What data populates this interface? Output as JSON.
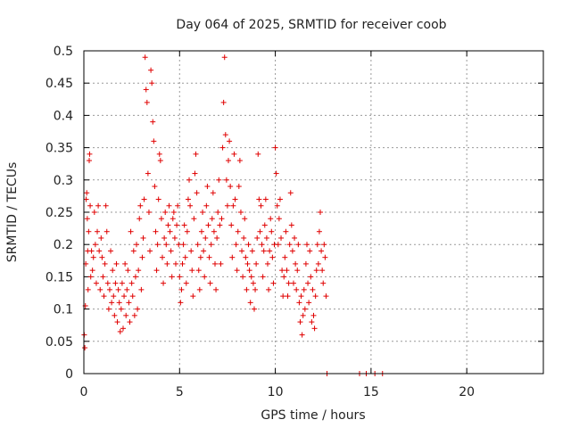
{
  "chart_data": {
    "type": "scatter",
    "title": "Day 064 of 2025, SRMTID for receiver coob",
    "xlabel": "GPS time / hours",
    "ylabel": "SRMTID / TECUs",
    "xlim": [
      0,
      24
    ],
    "ylim": [
      0,
      0.5
    ],
    "x_ticks": [
      0,
      5,
      10,
      15,
      20
    ],
    "x_tick_labels": [
      "0",
      "5",
      "10",
      "15",
      "20"
    ],
    "y_ticks": [
      0,
      0.05,
      0.1,
      0.15,
      0.2,
      0.25,
      0.3,
      0.35,
      0.4,
      0.45,
      0.5
    ],
    "y_tick_labels": [
      "0",
      "0.05",
      "0.1",
      "0.15",
      "0.2",
      "0.25",
      "0.3",
      "0.35",
      "0.4",
      "0.45",
      "0.5"
    ],
    "grid": true,
    "marker": "+",
    "color": "#e00000",
    "series": [
      {
        "name": "SRMTID",
        "points": [
          [
            0.02,
            0.06
          ],
          [
            0.05,
            0.04
          ],
          [
            0.08,
            0.105
          ],
          [
            0.1,
            0.17
          ],
          [
            0.12,
            0.27
          ],
          [
            0.15,
            0.28
          ],
          [
            0.18,
            0.24
          ],
          [
            0.2,
            0.19
          ],
          [
            0.22,
            0.13
          ],
          [
            0.25,
            0.22
          ],
          [
            0.28,
            0.33
          ],
          [
            0.3,
            0.34
          ],
          [
            0.33,
            0.26
          ],
          [
            0.36,
            0.15
          ],
          [
            0.4,
            0.19
          ],
          [
            0.45,
            0.16
          ],
          [
            0.5,
            0.18
          ],
          [
            0.55,
            0.25
          ],
          [
            0.6,
            0.2
          ],
          [
            0.65,
            0.14
          ],
          [
            0.7,
            0.22
          ],
          [
            0.75,
            0.26
          ],
          [
            0.8,
            0.19
          ],
          [
            0.85,
            0.13
          ],
          [
            0.9,
            0.21
          ],
          [
            0.95,
            0.18
          ],
          [
            1.0,
            0.15
          ],
          [
            1.05,
            0.12
          ],
          [
            1.1,
            0.17
          ],
          [
            1.15,
            0.26
          ],
          [
            1.2,
            0.22
          ],
          [
            1.25,
            0.14
          ],
          [
            1.3,
            0.1
          ],
          [
            1.35,
            0.13
          ],
          [
            1.4,
            0.19
          ],
          [
            1.45,
            0.11
          ],
          [
            1.5,
            0.16
          ],
          [
            1.55,
            0.12
          ],
          [
            1.6,
            0.09
          ],
          [
            1.65,
            0.14
          ],
          [
            1.7,
            0.17
          ],
          [
            1.75,
            0.08
          ],
          [
            1.8,
            0.13
          ],
          [
            1.85,
            0.11
          ],
          [
            1.9,
            0.065
          ],
          [
            1.95,
            0.1
          ],
          [
            2.0,
            0.14
          ],
          [
            2.05,
            0.07
          ],
          [
            2.1,
            0.12
          ],
          [
            2.15,
            0.17
          ],
          [
            2.2,
            0.09
          ],
          [
            2.25,
            0.13
          ],
          [
            2.3,
            0.16
          ],
          [
            2.35,
            0.11
          ],
          [
            2.4,
            0.08
          ],
          [
            2.45,
            0.22
          ],
          [
            2.5,
            0.14
          ],
          [
            2.55,
            0.12
          ],
          [
            2.6,
            0.19
          ],
          [
            2.65,
            0.09
          ],
          [
            2.7,
            0.15
          ],
          [
            2.75,
            0.2
          ],
          [
            2.8,
            0.1
          ],
          [
            2.85,
            0.16
          ],
          [
            2.9,
            0.24
          ],
          [
            2.95,
            0.26
          ],
          [
            3.0,
            0.13
          ],
          [
            3.05,
            0.18
          ],
          [
            3.1,
            0.21
          ],
          [
            3.15,
            0.27
          ],
          [
            3.2,
            0.49
          ],
          [
            3.25,
            0.44
          ],
          [
            3.3,
            0.42
          ],
          [
            3.35,
            0.31
          ],
          [
            3.4,
            0.25
          ],
          [
            3.45,
            0.19
          ],
          [
            3.5,
            0.47
          ],
          [
            3.55,
            0.45
          ],
          [
            3.6,
            0.39
          ],
          [
            3.65,
            0.36
          ],
          [
            3.7,
            0.29
          ],
          [
            3.75,
            0.22
          ],
          [
            3.8,
            0.16
          ],
          [
            3.85,
            0.2
          ],
          [
            3.9,
            0.27
          ],
          [
            3.95,
            0.34
          ],
          [
            4.0,
            0.33
          ],
          [
            4.05,
            0.24
          ],
          [
            4.1,
            0.18
          ],
          [
            4.15,
            0.14
          ],
          [
            4.2,
            0.21
          ],
          [
            4.25,
            0.25
          ],
          [
            4.3,
            0.2
          ],
          [
            4.35,
            0.17
          ],
          [
            4.4,
            0.23
          ],
          [
            4.45,
            0.26
          ],
          [
            4.5,
            0.22
          ],
          [
            4.55,
            0.19
          ],
          [
            4.6,
            0.15
          ],
          [
            4.65,
            0.24
          ],
          [
            4.7,
            0.25
          ],
          [
            4.75,
            0.21
          ],
          [
            4.8,
            0.17
          ],
          [
            4.85,
            0.23
          ],
          [
            4.9,
            0.26
          ],
          [
            4.95,
            0.2
          ],
          [
            5.0,
            0.15
          ],
          [
            5.05,
            0.11
          ],
          [
            5.1,
            0.13
          ],
          [
            5.15,
            0.17
          ],
          [
            5.2,
            0.2
          ],
          [
            5.25,
            0.23
          ],
          [
            5.3,
            0.18
          ],
          [
            5.35,
            0.14
          ],
          [
            5.4,
            0.22
          ],
          [
            5.45,
            0.27
          ],
          [
            5.5,
            0.3
          ],
          [
            5.55,
            0.26
          ],
          [
            5.6,
            0.19
          ],
          [
            5.65,
            0.16
          ],
          [
            5.7,
            0.12
          ],
          [
            5.75,
            0.24
          ],
          [
            5.8,
            0.31
          ],
          [
            5.85,
            0.34
          ],
          [
            5.9,
            0.28
          ],
          [
            5.95,
            0.2
          ],
          [
            6.0,
            0.16
          ],
          [
            6.05,
            0.13
          ],
          [
            6.1,
            0.18
          ],
          [
            6.15,
            0.22
          ],
          [
            6.2,
            0.25
          ],
          [
            6.25,
            0.19
          ],
          [
            6.3,
            0.15
          ],
          [
            6.35,
            0.21
          ],
          [
            6.4,
            0.26
          ],
          [
            6.45,
            0.29
          ],
          [
            6.5,
            0.23
          ],
          [
            6.55,
            0.18
          ],
          [
            6.6,
            0.14
          ],
          [
            6.65,
            0.2
          ],
          [
            6.7,
            0.24
          ],
          [
            6.75,
            0.28
          ],
          [
            6.8,
            0.22
          ],
          [
            6.85,
            0.17
          ],
          [
            6.9,
            0.13
          ],
          [
            6.95,
            0.21
          ],
          [
            7.0,
            0.25
          ],
          [
            7.05,
            0.3
          ],
          [
            7.1,
            0.23
          ],
          [
            7.15,
            0.17
          ],
          [
            7.2,
            0.24
          ],
          [
            7.25,
            0.35
          ],
          [
            7.3,
            0.42
          ],
          [
            7.35,
            0.49
          ],
          [
            7.4,
            0.37
          ],
          [
            7.45,
            0.3
          ],
          [
            7.5,
            0.26
          ],
          [
            7.55,
            0.33
          ],
          [
            7.6,
            0.36
          ],
          [
            7.65,
            0.29
          ],
          [
            7.7,
            0.23
          ],
          [
            7.75,
            0.18
          ],
          [
            7.8,
            0.26
          ],
          [
            7.85,
            0.34
          ],
          [
            7.9,
            0.27
          ],
          [
            7.95,
            0.2
          ],
          [
            8.0,
            0.16
          ],
          [
            8.05,
            0.22
          ],
          [
            8.1,
            0.29
          ],
          [
            8.15,
            0.33
          ],
          [
            8.2,
            0.25
          ],
          [
            8.25,
            0.19
          ],
          [
            8.3,
            0.15
          ],
          [
            8.35,
            0.21
          ],
          [
            8.4,
            0.24
          ],
          [
            8.45,
            0.18
          ],
          [
            8.5,
            0.13
          ],
          [
            8.55,
            0.17
          ],
          [
            8.6,
            0.2
          ],
          [
            8.65,
            0.16
          ],
          [
            8.7,
            0.11
          ],
          [
            8.75,
            0.15
          ],
          [
            8.8,
            0.19
          ],
          [
            8.85,
            0.14
          ],
          [
            8.9,
            0.1
          ],
          [
            8.95,
            0.13
          ],
          [
            9.0,
            0.17
          ],
          [
            9.05,
            0.21
          ],
          [
            9.1,
            0.34
          ],
          [
            9.15,
            0.27
          ],
          [
            9.2,
            0.22
          ],
          [
            9.25,
            0.26
          ],
          [
            9.3,
            0.2
          ],
          [
            9.35,
            0.15
          ],
          [
            9.4,
            0.19
          ],
          [
            9.45,
            0.23
          ],
          [
            9.5,
            0.27
          ],
          [
            9.55,
            0.21
          ],
          [
            9.6,
            0.17
          ],
          [
            9.65,
            0.13
          ],
          [
            9.7,
            0.19
          ],
          [
            9.75,
            0.24
          ],
          [
            9.8,
            0.22
          ],
          [
            9.85,
            0.18
          ],
          [
            9.9,
            0.14
          ],
          [
            9.95,
            0.2
          ],
          [
            10.0,
            0.35
          ],
          [
            10.05,
            0.31
          ],
          [
            10.1,
            0.26
          ],
          [
            10.15,
            0.2
          ],
          [
            10.2,
            0.24
          ],
          [
            10.25,
            0.27
          ],
          [
            10.3,
            0.21
          ],
          [
            10.35,
            0.16
          ],
          [
            10.4,
            0.12
          ],
          [
            10.45,
            0.15
          ],
          [
            10.5,
            0.18
          ],
          [
            10.55,
            0.22
          ],
          [
            10.6,
            0.16
          ],
          [
            10.65,
            0.12
          ],
          [
            10.7,
            0.14
          ],
          [
            10.75,
            0.2
          ],
          [
            10.8,
            0.28
          ],
          [
            10.85,
            0.23
          ],
          [
            10.9,
            0.19
          ],
          [
            10.95,
            0.14
          ],
          [
            11.0,
            0.21
          ],
          [
            11.05,
            0.17
          ],
          [
            11.1,
            0.13
          ],
          [
            11.15,
            0.16
          ],
          [
            11.2,
            0.2
          ],
          [
            11.25,
            0.11
          ],
          [
            11.3,
            0.08
          ],
          [
            11.35,
            0.12
          ],
          [
            11.4,
            0.06
          ],
          [
            11.45,
            0.09
          ],
          [
            11.5,
            0.13
          ],
          [
            11.55,
            0.1
          ],
          [
            11.6,
            0.17
          ],
          [
            11.65,
            0.2
          ],
          [
            11.7,
            0.14
          ],
          [
            11.75,
            0.11
          ],
          [
            11.8,
            0.19
          ],
          [
            11.85,
            0.15
          ],
          [
            11.9,
            0.08
          ],
          [
            11.95,
            0.13
          ],
          [
            12.0,
            0.09
          ],
          [
            12.05,
            0.07
          ],
          [
            12.1,
            0.12
          ],
          [
            12.15,
            0.16
          ],
          [
            12.2,
            0.2
          ],
          [
            12.25,
            0.17
          ],
          [
            12.3,
            0.22
          ],
          [
            12.35,
            0.25
          ],
          [
            12.4,
            0.19
          ],
          [
            12.45,
            0.16
          ],
          [
            12.5,
            0.14
          ],
          [
            12.55,
            0.2
          ],
          [
            12.6,
            0.18
          ],
          [
            12.65,
            0.12
          ],
          [
            12.7,
            0.0
          ],
          [
            14.4,
            0.0
          ],
          [
            14.75,
            0.0
          ],
          [
            15.2,
            0.0
          ],
          [
            15.6,
            0.0
          ]
        ]
      }
    ]
  }
}
